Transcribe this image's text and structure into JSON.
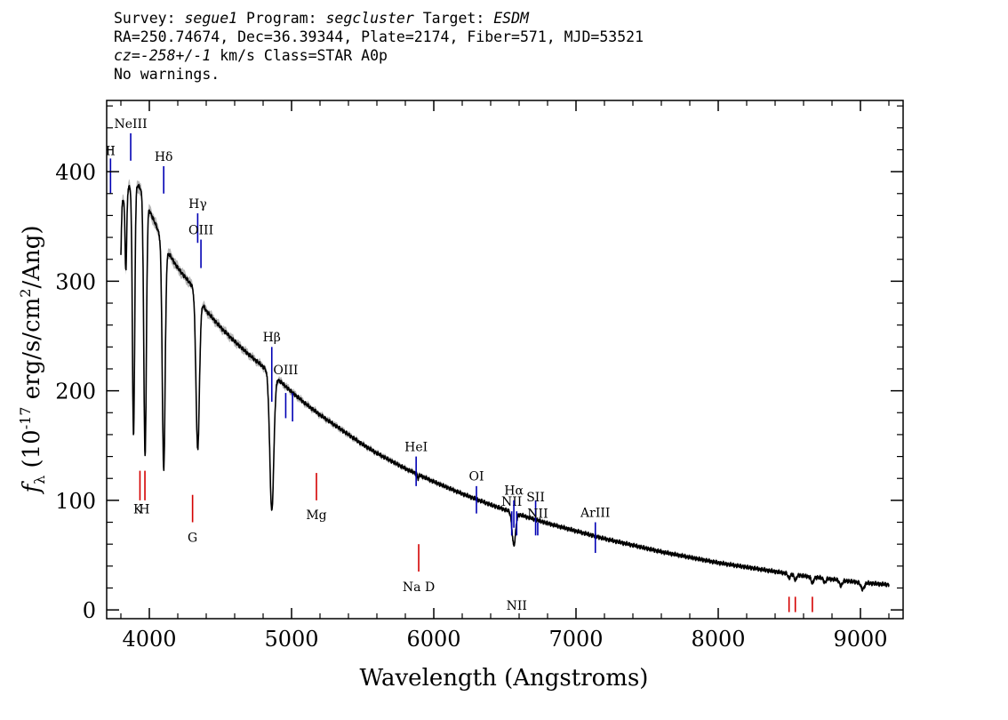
{
  "header": {
    "survey_label": "Survey:",
    "survey": "segue1",
    "program_label": "Program:",
    "program": "segcluster",
    "target_label": "Target:",
    "target": "ESDM",
    "line2": "RA=250.74674, Dec=36.39344, Plate=2174, Fiber=571, MJD=53521",
    "cz_label": "cz=",
    "cz": "-258+/-1",
    "cz_rest": " km/s Class=STAR A0p",
    "line4": "No warnings."
  },
  "chart_data": {
    "type": "line",
    "title": "",
    "xlabel": "Wavelength (Angstroms)",
    "ylabel": "f_λ (10^-17 erg/s/cm^2/Ang)",
    "xlim": [
      3700,
      9300
    ],
    "ylim": [
      -8,
      465
    ],
    "xticks": [
      4000,
      5000,
      6000,
      7000,
      8000,
      9000
    ],
    "xtick_labels": [
      "4000",
      "5000",
      "6000",
      "7000",
      "8000",
      "9000"
    ],
    "yticks": [
      0,
      100,
      200,
      300,
      400
    ],
    "ytick_labels": [
      "0",
      "100",
      "200",
      "300",
      "400"
    ],
    "grid": false,
    "continuum": [
      [
        3800,
        370
      ],
      [
        3850,
        385
      ],
      [
        3900,
        390
      ],
      [
        3950,
        383
      ],
      [
        4000,
        365
      ],
      [
        4050,
        350
      ],
      [
        4100,
        333
      ],
      [
        4200,
        312
      ],
      [
        4300,
        296
      ],
      [
        4400,
        273
      ],
      [
        4500,
        258
      ],
      [
        4600,
        245
      ],
      [
        4700,
        233
      ],
      [
        4800,
        222
      ],
      [
        4900,
        211
      ],
      [
        5000,
        199
      ],
      [
        5100,
        188
      ],
      [
        5200,
        178
      ],
      [
        5300,
        169
      ],
      [
        5400,
        160
      ],
      [
        5500,
        151
      ],
      [
        5600,
        143
      ],
      [
        5700,
        136
      ],
      [
        5800,
        129
      ],
      [
        5900,
        123
      ],
      [
        6000,
        117
      ],
      [
        6200,
        106
      ],
      [
        6400,
        96
      ],
      [
        6600,
        87
      ],
      [
        6800,
        79
      ],
      [
        7000,
        72
      ],
      [
        7200,
        65
      ],
      [
        7400,
        59
      ],
      [
        7600,
        53
      ],
      [
        7800,
        48
      ],
      [
        8000,
        43
      ],
      [
        8200,
        39
      ],
      [
        8400,
        35
      ],
      [
        8600,
        31
      ],
      [
        8800,
        28
      ],
      [
        9000,
        25
      ],
      [
        9200,
        23
      ]
    ],
    "absorption_lines": [
      {
        "center": 3798,
        "depth": 50,
        "width": 5
      },
      {
        "center": 3835,
        "depth": 70,
        "width": 6
      },
      {
        "center": 3889,
        "depth": 230,
        "width": 8
      },
      {
        "center": 3970,
        "depth": 235,
        "width": 9
      },
      {
        "center": 4101,
        "depth": 205,
        "width": 10
      },
      {
        "center": 4340,
        "depth": 140,
        "width": 12
      },
      {
        "center": 4861,
        "depth": 125,
        "width": 14
      },
      {
        "center": 5890,
        "depth": 4,
        "width": 4
      },
      {
        "center": 6563,
        "depth": 30,
        "width": 12
      },
      {
        "center": 8498,
        "depth": 4,
        "width": 8
      },
      {
        "center": 8542,
        "depth": 5,
        "width": 8
      },
      {
        "center": 8662,
        "depth": 6,
        "width": 8
      },
      {
        "center": 8750,
        "depth": 4,
        "width": 8
      },
      {
        "center": 8863,
        "depth": 5,
        "width": 10
      },
      {
        "center": 9015,
        "depth": 6,
        "width": 12
      }
    ],
    "line_markers": [
      {
        "label": "II",
        "wave": 3727,
        "y_bottom": 380,
        "y_top": 412,
        "color": "#0000b4",
        "label_y": 415
      },
      {
        "label": "NeIII",
        "wave": 3869,
        "y_bottom": 410,
        "y_top": 435,
        "color": "#0000b4",
        "label_y": 440
      },
      {
        "label": "Hδ",
        "wave": 4101,
        "y_bottom": 380,
        "y_top": 405,
        "color": "#0000b4",
        "label_y": 410
      },
      {
        "label": "Hγ",
        "wave": 4340,
        "y_bottom": 335,
        "y_top": 362,
        "color": "#0000b4",
        "label_y": 367
      },
      {
        "label": "OIII",
        "wave": 4363,
        "y_bottom": 312,
        "y_top": 338,
        "color": "#0000b4",
        "label_y": 343
      },
      {
        "label": "Hβ",
        "wave": 4861,
        "y_bottom": 190,
        "y_top": 240,
        "color": "#0000b4",
        "label_y": 245
      },
      {
        "label": "OIII",
        "wave": 4959,
        "y_bottom": 175,
        "y_top": 198,
        "color": "#0000b4",
        "label_y": 215
      },
      {
        "label": "",
        "wave": 5007,
        "y_bottom": 172,
        "y_top": 198,
        "color": "#0000b4",
        "label_y": 0
      },
      {
        "label": "HeI",
        "wave": 5876,
        "y_bottom": 113,
        "y_top": 140,
        "color": "#0000b4",
        "label_y": 145
      },
      {
        "label": "OI",
        "wave": 6300,
        "y_bottom": 88,
        "y_top": 113,
        "color": "#0000b4",
        "label_y": 118
      },
      {
        "label": "NII",
        "wave": 6548,
        "y_bottom": 68,
        "y_top": 90,
        "color": "#0000b4",
        "label_y": 95
      },
      {
        "label": "Hα",
        "wave": 6563,
        "y_bottom": 75,
        "y_top": 100,
        "color": "#0000b4",
        "label_y": 105
      },
      {
        "label": "NII",
        "wave": 6583,
        "y_bottom": 68,
        "y_top": 90,
        "color": "#0000b4",
        "label_y": 0
      },
      {
        "label": "SII",
        "wave": 6716,
        "y_bottom": 68,
        "y_top": 100,
        "color": "#0000b4",
        "label_y": 99
      },
      {
        "label": "NII",
        "wave": 6731,
        "y_bottom": 68,
        "y_top": 80,
        "color": "#0000b4",
        "label_y": 84
      },
      {
        "label": "ArIII",
        "wave": 7136,
        "y_bottom": 52,
        "y_top": 80,
        "color": "#0000b4",
        "label_y": 85
      },
      {
        "label": "",
        "wave": 3934,
        "y_bottom": 100,
        "y_top": 127,
        "color": "#d40000",
        "label_y": 0
      },
      {
        "label": "",
        "wave": 3969,
        "y_bottom": 100,
        "y_top": 127,
        "color": "#d40000",
        "label_y": 0
      },
      {
        "label": "K",
        "wave": 3920,
        "y_bottom": 0,
        "y_top": 0,
        "color": "#000",
        "label_y": 88,
        "text_only": true
      },
      {
        "label": "H",
        "wave": 3965,
        "y_bottom": 0,
        "y_top": 0,
        "color": "#000",
        "label_y": 88,
        "text_only": true
      },
      {
        "label": "G",
        "wave": 4304,
        "y_bottom": 80,
        "y_top": 105,
        "color": "#d40000",
        "label_y": 62,
        "label_below": true
      },
      {
        "label": "Mg",
        "wave": 5175,
        "y_bottom": 100,
        "y_top": 125,
        "color": "#d40000",
        "label_y": 83,
        "label_below": true
      },
      {
        "label": "Na D",
        "wave": 5894,
        "y_bottom": 35,
        "y_top": 60,
        "color": "#d40000",
        "label_y": 17,
        "label_below": true
      },
      {
        "label": "",
        "wave": 8498,
        "y_bottom": -2,
        "y_top": 12,
        "color": "#d40000",
        "label_y": 0
      },
      {
        "label": "",
        "wave": 8542,
        "y_bottom": -2,
        "y_top": 12,
        "color": "#d40000",
        "label_y": 0
      },
      {
        "label": "",
        "wave": 8662,
        "y_bottom": -2,
        "y_top": 12,
        "color": "#d40000",
        "label_y": 0
      }
    ]
  }
}
